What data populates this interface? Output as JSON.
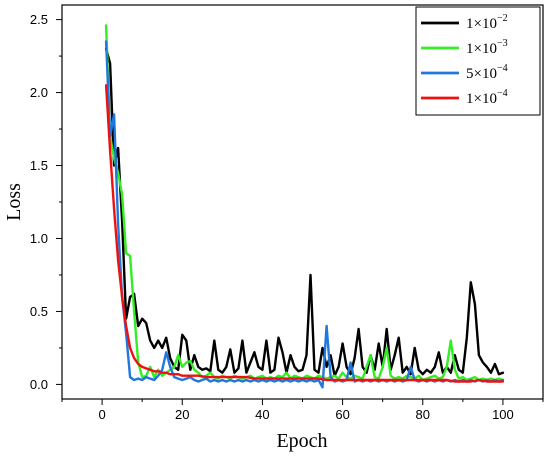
{
  "chart_data": {
    "type": "line",
    "title": "",
    "xlabel": "Epoch",
    "ylabel": "Loss",
    "xlim": [
      -10,
      110
    ],
    "ylim": [
      -0.1,
      2.6
    ],
    "xticks": [
      0,
      20,
      40,
      60,
      80,
      100
    ],
    "yticks": [
      0.0,
      0.5,
      1.0,
      1.5,
      2.0,
      2.5
    ],
    "xtick_labels": [
      "0",
      "20",
      "40",
      "60",
      "80",
      "100"
    ],
    "ytick_labels": [
      "0.0",
      "0.5",
      "1.0",
      "1.5",
      "2.0",
      "2.5"
    ],
    "legend_position": "top-right",
    "grid": false,
    "series": [
      {
        "name": "1×10^-2",
        "legend_base": "1×10",
        "legend_exp": "−2",
        "color": "#000000",
        "x": [
          1,
          2,
          3,
          4,
          5,
          6,
          7,
          8,
          9,
          10,
          11,
          12,
          13,
          14,
          15,
          16,
          17,
          18,
          19,
          20,
          21,
          22,
          23,
          24,
          25,
          26,
          27,
          28,
          29,
          30,
          31,
          32,
          33,
          34,
          35,
          36,
          37,
          38,
          39,
          40,
          41,
          42,
          43,
          44,
          45,
          46,
          47,
          48,
          49,
          50,
          51,
          52,
          53,
          54,
          55,
          56,
          57,
          58,
          59,
          60,
          61,
          62,
          63,
          64,
          65,
          66,
          67,
          68,
          69,
          70,
          71,
          72,
          73,
          74,
          75,
          76,
          77,
          78,
          79,
          80,
          81,
          82,
          83,
          84,
          85,
          86,
          87,
          88,
          89,
          90,
          91,
          92,
          93,
          94,
          95,
          96,
          97,
          98,
          99,
          100
        ],
        "values": [
          2.3,
          2.2,
          1.5,
          1.62,
          1.12,
          0.45,
          0.6,
          0.62,
          0.4,
          0.45,
          0.42,
          0.3,
          0.25,
          0.3,
          0.25,
          0.32,
          0.18,
          0.12,
          0.1,
          0.34,
          0.3,
          0.1,
          0.2,
          0.12,
          0.1,
          0.11,
          0.09,
          0.3,
          0.1,
          0.08,
          0.12,
          0.24,
          0.08,
          0.11,
          0.3,
          0.08,
          0.15,
          0.22,
          0.12,
          0.1,
          0.3,
          0.08,
          0.1,
          0.32,
          0.22,
          0.08,
          0.2,
          0.12,
          0.09,
          0.1,
          0.2,
          0.75,
          0.1,
          0.08,
          0.25,
          0.12,
          0.2,
          0.06,
          0.12,
          0.28,
          0.12,
          0.07,
          0.18,
          0.38,
          0.12,
          0.08,
          0.2,
          0.1,
          0.28,
          0.12,
          0.38,
          0.1,
          0.2,
          0.32,
          0.08,
          0.12,
          0.07,
          0.25,
          0.1,
          0.07,
          0.1,
          0.08,
          0.12,
          0.22,
          0.08,
          0.12,
          0.08,
          0.2,
          0.1,
          0.08,
          0.32,
          0.7,
          0.55,
          0.2,
          0.15,
          0.12,
          0.08,
          0.14,
          0.07,
          0.08
        ]
      },
      {
        "name": "1×10^-3",
        "legend_base": "1×10",
        "legend_exp": "−3",
        "color": "#33ee22",
        "x": [
          1,
          2,
          3,
          4,
          5,
          6,
          7,
          8,
          9,
          10,
          11,
          12,
          13,
          14,
          15,
          16,
          17,
          18,
          19,
          20,
          21,
          22,
          23,
          24,
          25,
          26,
          27,
          28,
          29,
          30,
          31,
          32,
          33,
          34,
          35,
          36,
          37,
          38,
          39,
          40,
          41,
          42,
          43,
          44,
          45,
          46,
          47,
          48,
          49,
          50,
          51,
          52,
          53,
          54,
          55,
          56,
          57,
          58,
          59,
          60,
          61,
          62,
          63,
          64,
          65,
          66,
          67,
          68,
          69,
          70,
          71,
          72,
          73,
          74,
          75,
          76,
          77,
          78,
          79,
          80,
          81,
          82,
          83,
          84,
          85,
          86,
          87,
          88,
          89,
          90,
          91,
          92,
          93,
          94,
          95,
          96,
          97,
          98,
          99,
          100
        ],
        "values": [
          2.46,
          1.7,
          1.55,
          1.45,
          1.3,
          0.9,
          0.88,
          0.5,
          0.15,
          0.05,
          0.06,
          0.12,
          0.05,
          0.1,
          0.06,
          0.08,
          0.1,
          0.12,
          0.2,
          0.12,
          0.15,
          0.16,
          0.1,
          0.08,
          0.05,
          0.06,
          0.08,
          0.05,
          0.04,
          0.06,
          0.05,
          0.04,
          0.06,
          0.05,
          0.04,
          0.05,
          0.06,
          0.04,
          0.05,
          0.06,
          0.04,
          0.05,
          0.04,
          0.06,
          0.05,
          0.08,
          0.04,
          0.06,
          0.05,
          0.04,
          0.06,
          0.05,
          0.04,
          0.06,
          0.05,
          0.04,
          0.05,
          0.06,
          0.04,
          0.08,
          0.05,
          0.04,
          0.06,
          0.05,
          0.04,
          0.12,
          0.2,
          0.05,
          0.04,
          0.12,
          0.25,
          0.06,
          0.04,
          0.05,
          0.04,
          0.06,
          0.05,
          0.04,
          0.06,
          0.03,
          0.04,
          0.05,
          0.06,
          0.04,
          0.05,
          0.12,
          0.3,
          0.1,
          0.04,
          0.05,
          0.03,
          0.04,
          0.05,
          0.03,
          0.04,
          0.03,
          0.04,
          0.03,
          0.04,
          0.03
        ]
      },
      {
        "name": "5×10^-4",
        "legend_base": "5×10",
        "legend_exp": "−4",
        "color": "#2277dd",
        "x": [
          1,
          2,
          3,
          4,
          5,
          6,
          7,
          8,
          9,
          10,
          11,
          12,
          13,
          14,
          15,
          16,
          17,
          18,
          19,
          20,
          21,
          22,
          23,
          24,
          25,
          26,
          27,
          28,
          29,
          30,
          31,
          32,
          33,
          34,
          35,
          36,
          37,
          38,
          39,
          40,
          41,
          42,
          43,
          44,
          45,
          46,
          47,
          48,
          49,
          50,
          51,
          52,
          53,
          54,
          55,
          56,
          57,
          58,
          59,
          60,
          61,
          62,
          63,
          64,
          65,
          66,
          67,
          68,
          69,
          70,
          71,
          72,
          73,
          74,
          75,
          76,
          77,
          78,
          79,
          80,
          81,
          82,
          83,
          84,
          85,
          86,
          87,
          88,
          89,
          90,
          91,
          92,
          93,
          94,
          95,
          96,
          97,
          98,
          99,
          100
        ],
        "values": [
          2.35,
          1.7,
          1.85,
          1.1,
          0.6,
          0.35,
          0.05,
          0.03,
          0.04,
          0.03,
          0.05,
          0.04,
          0.03,
          0.06,
          0.1,
          0.22,
          0.12,
          0.05,
          0.04,
          0.03,
          0.04,
          0.05,
          0.03,
          0.02,
          0.03,
          0.04,
          0.02,
          0.03,
          0.02,
          0.03,
          0.02,
          0.03,
          0.02,
          0.03,
          0.02,
          0.03,
          0.02,
          0.03,
          0.02,
          0.03,
          0.02,
          0.03,
          0.02,
          0.03,
          0.02,
          0.03,
          0.02,
          0.03,
          0.02,
          0.03,
          0.02,
          0.03,
          0.02,
          0.03,
          -0.02,
          0.4,
          0.05,
          0.02,
          0.03,
          0.02,
          0.03,
          0.15,
          0.02,
          0.03,
          0.02,
          0.03,
          0.02,
          0.03,
          0.02,
          0.03,
          0.02,
          0.03,
          0.02,
          0.03,
          0.02,
          0.03,
          0.12,
          0.03,
          0.02,
          0.03,
          0.02,
          0.03,
          0.02,
          0.03,
          0.02,
          0.03,
          0.02,
          0.03,
          0.02,
          0.03,
          0.02,
          0.03,
          0.02,
          0.03,
          0.02,
          0.03,
          0.02,
          0.03,
          0.02,
          0.03
        ]
      },
      {
        "name": "1×10^-4",
        "legend_base": "1×10",
        "legend_exp": "−4",
        "color": "#ee1111",
        "x": [
          1,
          2,
          3,
          4,
          5,
          6,
          7,
          8,
          9,
          10,
          11,
          12,
          13,
          14,
          15,
          16,
          17,
          18,
          19,
          20,
          22,
          24,
          26,
          28,
          30,
          32,
          34,
          36,
          38,
          40,
          42,
          44,
          46,
          48,
          50,
          52,
          54,
          56,
          58,
          60,
          62,
          64,
          66,
          68,
          70,
          72,
          74,
          76,
          78,
          80,
          82,
          84,
          86,
          88,
          90,
          92,
          94,
          96,
          98,
          100
        ],
        "values": [
          2.05,
          1.6,
          1.2,
          0.85,
          0.6,
          0.4,
          0.25,
          0.18,
          0.14,
          0.12,
          0.11,
          0.1,
          0.09,
          0.09,
          0.08,
          0.08,
          0.07,
          0.07,
          0.07,
          0.06,
          0.06,
          0.06,
          0.05,
          0.05,
          0.05,
          0.05,
          0.05,
          0.05,
          0.04,
          0.04,
          0.04,
          0.04,
          0.04,
          0.04,
          0.04,
          0.04,
          0.04,
          0.03,
          0.03,
          0.03,
          0.03,
          0.03,
          0.03,
          0.03,
          0.03,
          0.03,
          0.03,
          0.03,
          0.03,
          0.03,
          0.03,
          0.03,
          0.03,
          0.02,
          0.02,
          0.02,
          0.03,
          0.02,
          0.02,
          0.02
        ]
      }
    ]
  }
}
